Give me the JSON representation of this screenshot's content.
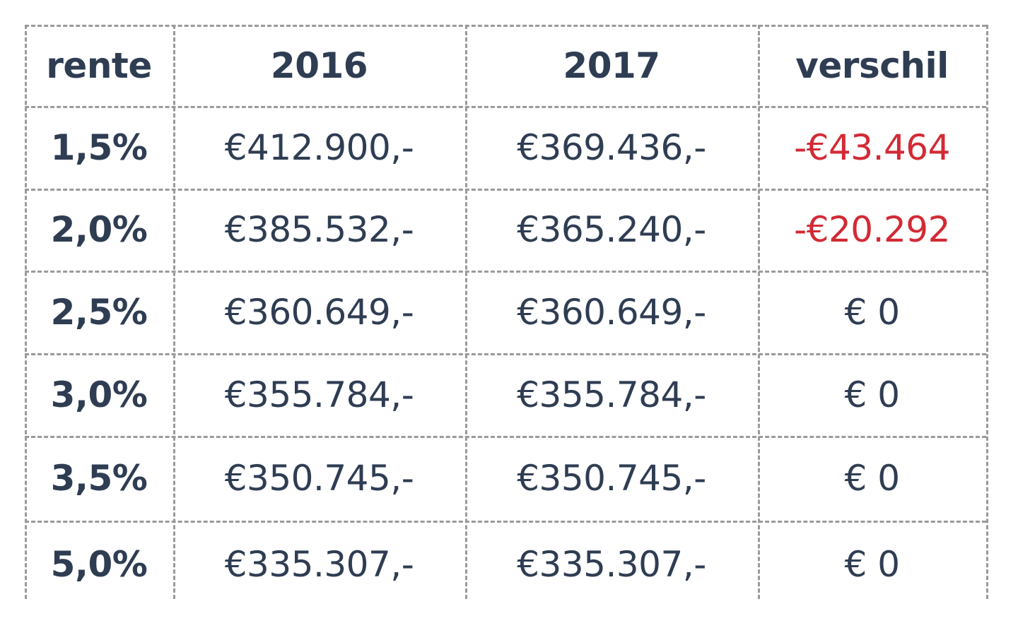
{
  "table": {
    "header": [
      "rente",
      "2016",
      "2017",
      "verschil"
    ],
    "rows": [
      [
        "1,5%",
        "€412.900,-",
        "€369.436,-",
        "-€43.464"
      ],
      [
        "2,0%",
        "€385.532,-",
        "€365.240,-",
        "-€20.292"
      ],
      [
        "2,5%",
        "€360.649,-",
        "€360.649,-",
        "€ 0"
      ],
      [
        "3,0%",
        "€355.784,-",
        "€355.784,-",
        "€ 0"
      ],
      [
        "3,5%",
        "€350.745,-",
        "€350.745,-",
        "€ 0"
      ],
      [
        "5,0%",
        "€335.307,-",
        "€335.307,-",
        "€ 0"
      ]
    ]
  }
}
